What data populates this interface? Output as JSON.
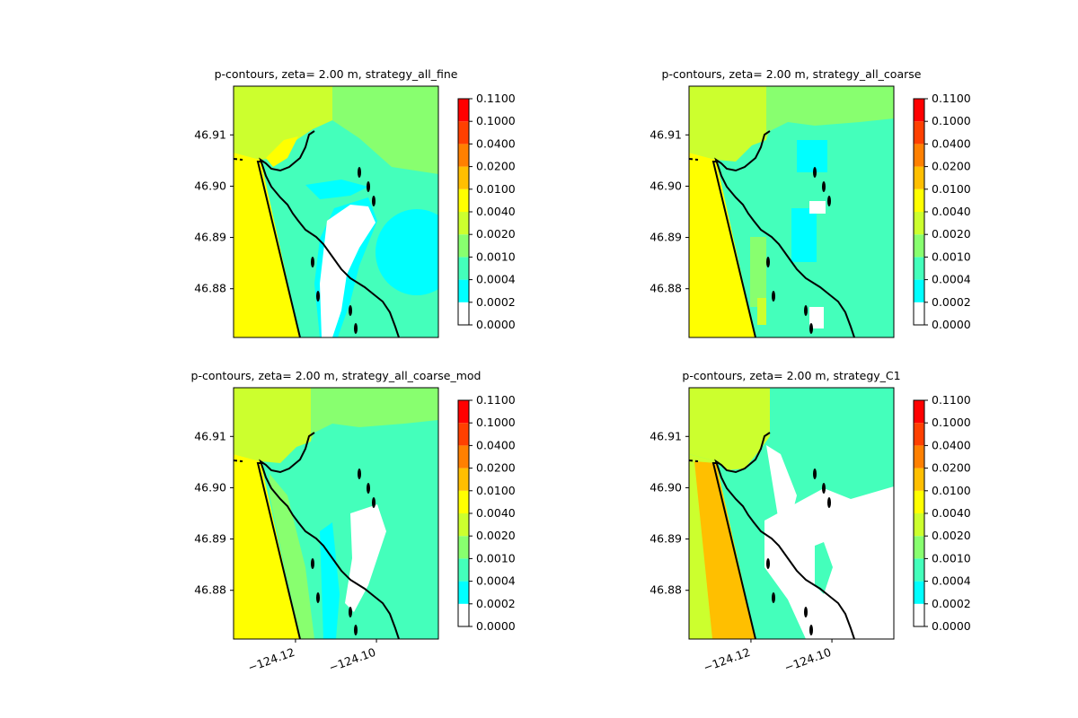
{
  "chart_data": [
    {
      "type": "heatmap",
      "title": "p-contours, zeta= 2.00 m, strategy_all_fine",
      "xlabel": "",
      "ylabel": "",
      "ylim": [
        46.8705,
        46.9195
      ],
      "xlim": [
        -124.1353,
        -124.0847
      ],
      "yticks": [
        46.88,
        46.89,
        46.9,
        46.91
      ],
      "ytick_labels": [
        "46.88",
        "46.89",
        "46.90",
        "46.91"
      ],
      "xticks": [],
      "xtick_labels": [],
      "strategy": "all_fine"
    },
    {
      "type": "heatmap",
      "title": "p-contours, zeta= 2.00 m, strategy_all_coarse",
      "xlabel": "",
      "ylabel": "",
      "ylim": [
        46.8705,
        46.9195
      ],
      "xlim": [
        -124.1353,
        -124.0847
      ],
      "yticks": [
        46.88,
        46.89,
        46.9,
        46.91
      ],
      "ytick_labels": [
        "46.88",
        "46.89",
        "46.90",
        "46.91"
      ],
      "xticks": [],
      "xtick_labels": [],
      "strategy": "all_coarse"
    },
    {
      "type": "heatmap",
      "title": "p-contours, zeta= 2.00 m, strategy_all_coarse_mod",
      "xlabel": "",
      "ylabel": "",
      "ylim": [
        46.8705,
        46.9195
      ],
      "xlim": [
        -124.1353,
        -124.0847
      ],
      "yticks": [
        46.88,
        46.89,
        46.9,
        46.91
      ],
      "ytick_labels": [
        "46.88",
        "46.89",
        "46.90",
        "46.91"
      ],
      "xticks": [
        -124.12,
        -124.1
      ],
      "xtick_labels": [
        "−124.12",
        "−124.10"
      ],
      "strategy": "all_coarse_mod"
    },
    {
      "type": "heatmap",
      "title": "p-contours, zeta= 2.00 m, strategy_C1",
      "xlabel": "",
      "ylabel": "",
      "ylim": [
        46.8705,
        46.9195
      ],
      "xlim": [
        -124.1353,
        -124.0847
      ],
      "yticks": [
        46.88,
        46.89,
        46.9,
        46.91
      ],
      "ytick_labels": [
        "46.88",
        "46.89",
        "46.90",
        "46.91"
      ],
      "xticks": [
        -124.12,
        -124.1
      ],
      "xtick_labels": [
        "−124.12",
        "−124.10"
      ],
      "strategy": "C1"
    }
  ],
  "colorbar": {
    "levels": [
      "0.0000",
      "0.0002",
      "0.0004",
      "0.0010",
      "0.0020",
      "0.0040",
      "0.0100",
      "0.0200",
      "0.0400",
      "0.1000",
      "0.1100"
    ],
    "bin_colors": [
      "#ffffff",
      "#00ffff",
      "#44ffbb",
      "#88ff6f",
      "#ccff2e",
      "#ffff00",
      "#ffbf00",
      "#ff8000",
      "#ff4000",
      "#ff0000"
    ]
  },
  "coastline_color": "#000000"
}
